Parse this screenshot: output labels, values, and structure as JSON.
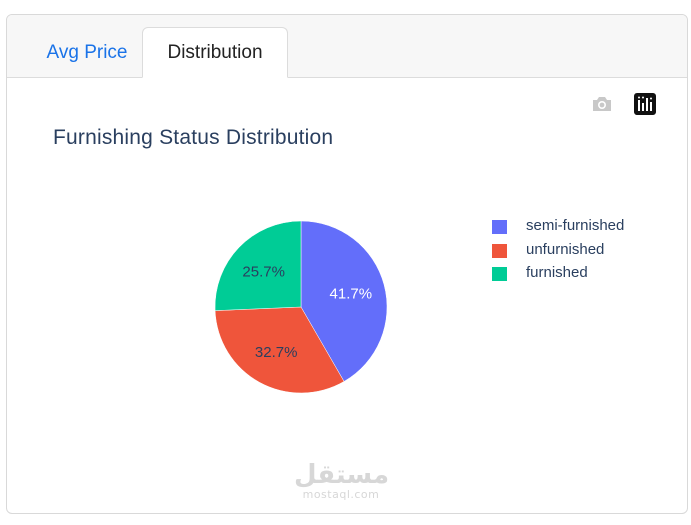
{
  "tabs": [
    {
      "label": "Avg Price",
      "active": false
    },
    {
      "label": "Distribution",
      "active": true
    }
  ],
  "toolbar": {
    "camera_icon": "camera-icon",
    "plotly_icon": "plotly-logo-icon"
  },
  "chart_data": {
    "type": "pie",
    "title": "Furnishing Status Distribution",
    "labels": [
      "semi-furnished",
      "unfurnished",
      "furnished"
    ],
    "values": [
      41.7,
      32.7,
      25.7
    ],
    "value_labels": [
      "41.7%",
      "32.7%",
      "25.7%"
    ],
    "colors": [
      "#636efa",
      "#ef553b",
      "#00cc96"
    ],
    "legend_position": "right"
  },
  "watermark": {
    "arabic": "مستقل",
    "latin": "mostaql.com"
  }
}
